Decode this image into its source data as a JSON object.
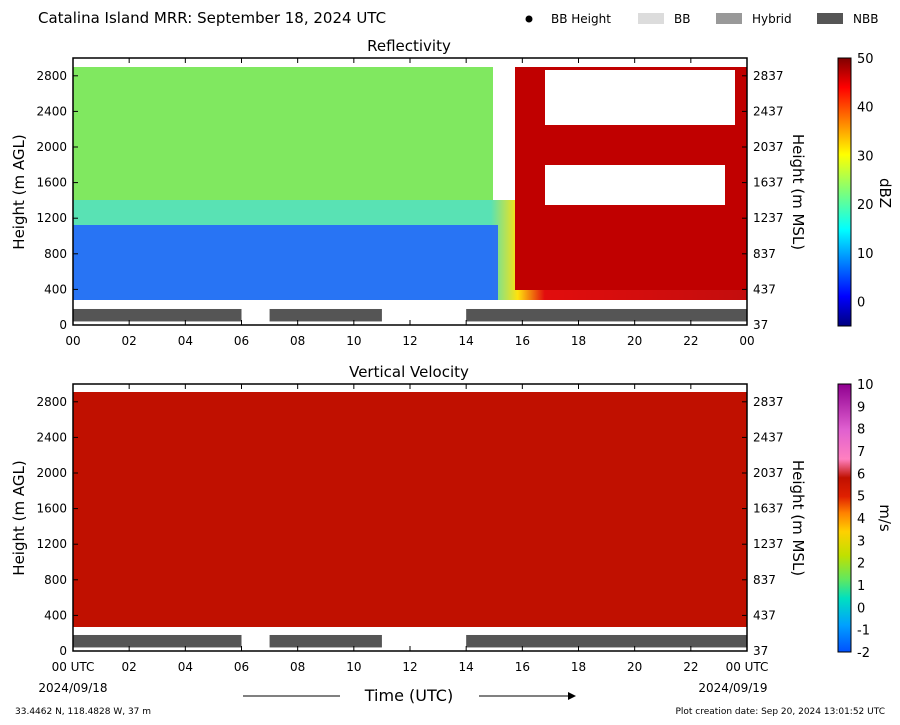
{
  "figure": {
    "title": "Catalina Island MRR:  September 18, 2024 UTC",
    "footer_left": "33.4462 N, 118.4828 W, 37 m",
    "footer_right": "Plot creation date: Sep 20, 2024 13:01:52 UTC",
    "date_left": "2024/09/18",
    "date_right": "2024/09/19",
    "xlabel": "Time (UTC)"
  },
  "legend": {
    "items": [
      {
        "label": "BB Height",
        "kind": "dot",
        "color": "#000000"
      },
      {
        "label": "BB",
        "kind": "box",
        "color": "#dcdcdc"
      },
      {
        "label": "Hybrid",
        "kind": "box",
        "color": "#999999"
      },
      {
        "label": "NBB",
        "kind": "box",
        "color": "#555555"
      }
    ]
  },
  "chart_data": [
    {
      "type": "heatmap",
      "title": "Reflectivity",
      "ylabel": "Height (m AGL)",
      "ylabel_right": "Height (m MSL)",
      "colorbar_label": "dBZ",
      "xlim": [
        0,
        24
      ],
      "ylim": [
        0,
        3000
      ],
      "x_ticks": [
        "00",
        "02",
        "04",
        "06",
        "08",
        "10",
        "12",
        "14",
        "16",
        "18",
        "20",
        "22",
        "00"
      ],
      "y_ticks_left": [
        "0",
        "400",
        "800",
        "1200",
        "1600",
        "2000",
        "2400",
        "2800"
      ],
      "y_ticks_right": [
        "37",
        "437",
        "837",
        "1237",
        "1637",
        "2037",
        "2437",
        "2837"
      ],
      "colorbar": {
        "min": -5,
        "max": 50,
        "ticks": [
          "0",
          "10",
          "20",
          "30",
          "40",
          "50"
        ]
      },
      "nbb_segments": [
        [
          0,
          6
        ],
        [
          7,
          11
        ],
        [
          14,
          24
        ]
      ],
      "summary": "00-15 UTC: 10-25 dBZ above 1300 m, 0-10 dBZ below 1300 m; 15.5-24 UTC: 35-50 dBZ from 300 to 1300 m, no echo around 1300-1800 m and 2200-2700 m"
    },
    {
      "type": "heatmap",
      "title": "Vertical Velocity",
      "ylabel": "Height (m AGL)",
      "ylabel_right": "Height (m MSL)",
      "colorbar_label": "m/s",
      "xlim": [
        0,
        24
      ],
      "ylim": [
        0,
        3000
      ],
      "x_ticks": [
        "00 UTC",
        "02",
        "04",
        "06",
        "08",
        "10",
        "12",
        "14",
        "16",
        "18",
        "20",
        "22",
        "00 UTC"
      ],
      "y_ticks_left": [
        "0",
        "400",
        "800",
        "1200",
        "1600",
        "2000",
        "2400",
        "2800"
      ],
      "y_ticks_right": [
        "37",
        "437",
        "837",
        "1237",
        "1637",
        "2037",
        "2437",
        "2837"
      ],
      "colorbar": {
        "min": -2,
        "max": 10,
        "ticks": [
          "-2",
          "-1",
          "0",
          "1",
          "2",
          "3",
          "4",
          "5",
          "6",
          "7",
          "8",
          "9",
          "10"
        ]
      },
      "nbb_segments": [
        [
          0,
          6
        ],
        [
          7,
          11
        ],
        [
          14,
          24
        ]
      ],
      "summary": "about 6 m/s at all heights from 300 to 3000 m, 00-24 UTC"
    }
  ]
}
